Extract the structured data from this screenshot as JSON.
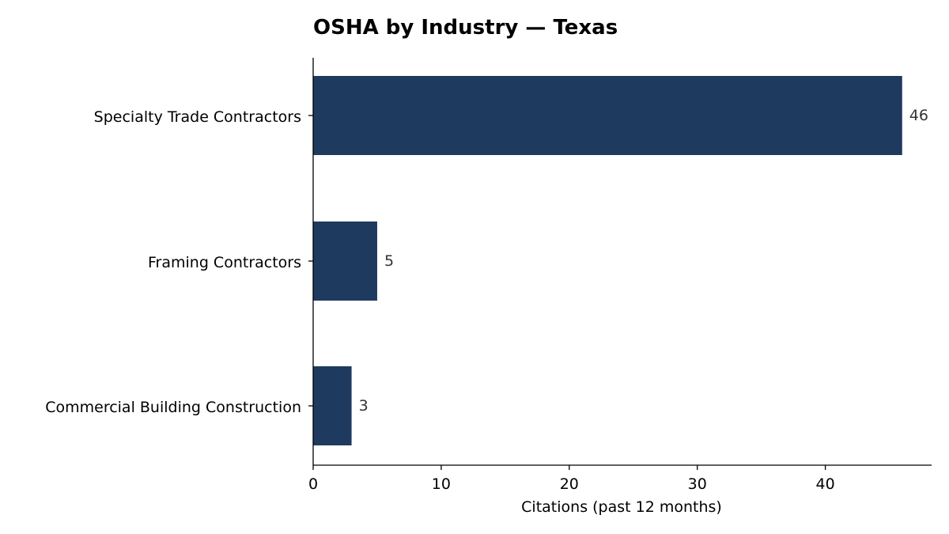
{
  "chart_data": {
    "type": "bar",
    "orientation": "horizontal",
    "title": "OSHA by Industry — Texas",
    "xlabel": "Citations (past 12 months)",
    "ylabel": "",
    "categories": [
      "Specialty Trade Contractors",
      "Framing Contractors",
      "Commercial Building Construction"
    ],
    "values": [
      46,
      5,
      3
    ],
    "data_labels": [
      "46",
      "5",
      "3"
    ],
    "xlim": [
      0,
      48.3
    ],
    "x_ticks": [
      0,
      10,
      20,
      30,
      40
    ],
    "x_tick_labels": [
      "0",
      "10",
      "20",
      "30",
      "40"
    ],
    "grid": false,
    "legend": "none",
    "bar_color": "#1f3a5f",
    "spines": [
      "left",
      "bottom"
    ]
  }
}
